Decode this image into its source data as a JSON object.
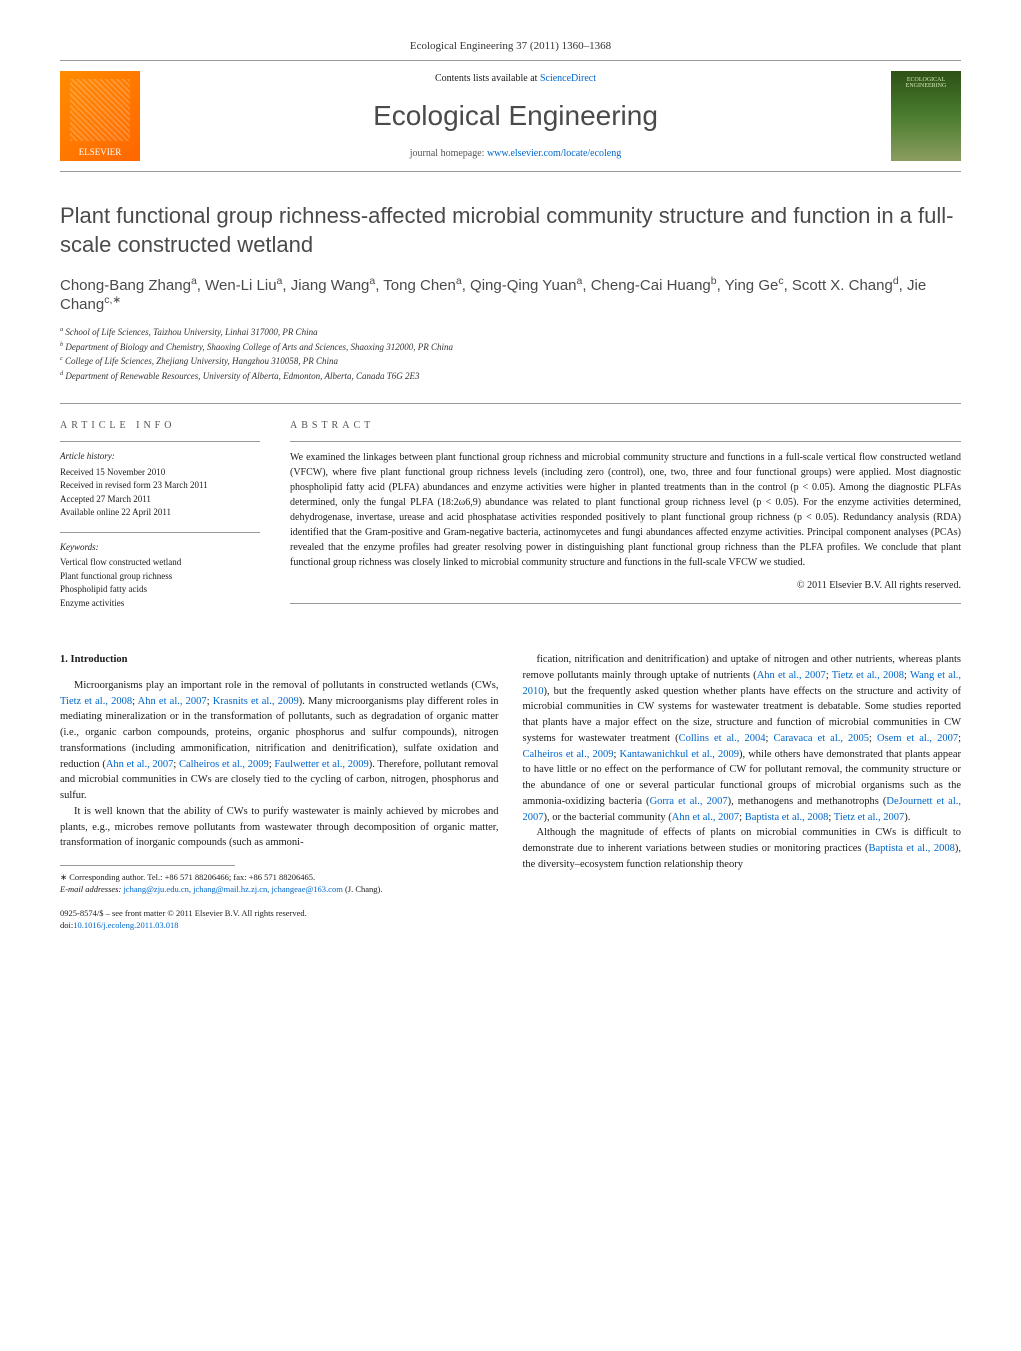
{
  "journal_ref": "Ecological Engineering 37 (2011) 1360–1368",
  "contents_text": "Contents lists available at ",
  "contents_link": "ScienceDirect",
  "journal_name": "Ecological Engineering",
  "homepage_text": "journal homepage: ",
  "homepage_link": "www.elsevier.com/locate/ecoleng",
  "elsevier_label": "ELSEVIER",
  "cover_label": "ECOLOGICAL ENGINEERING",
  "title": "Plant functional group richness-affected microbial community structure and function in a full-scale constructed wetland",
  "authors_html": "Chong-Bang Zhang<sup>a</sup>, Wen-Li Liu<sup>a</sup>, Jiang Wang<sup>a</sup>, Tong Chen<sup>a</sup>, Qing-Qing Yuan<sup>a</sup>, Cheng-Cai Huang<sup>b</sup>, Ying Ge<sup>c</sup>, Scott X. Chang<sup>d</sup>, Jie Chang<sup>c,∗</sup>",
  "affiliations": [
    "a School of Life Sciences, Taizhou University, Linhai 317000, PR China",
    "b Department of Biology and Chemistry, Shaoxing College of Arts and Sciences, Shaoxing 312000, PR China",
    "c College of Life Sciences, Zhejiang University, Hangzhou 310058, PR China",
    "d Department of Renewable Resources, University of Alberta, Edmonton, Alberta, Canada T6G 2E3"
  ],
  "info_label": "article info",
  "abstract_label": "abstract",
  "history": {
    "heading": "Article history:",
    "lines": [
      "Received 15 November 2010",
      "Received in revised form 23 March 2011",
      "Accepted 27 March 2011",
      "Available online 22 April 2011"
    ]
  },
  "keywords": {
    "heading": "Keywords:",
    "lines": [
      "Vertical flow constructed wetland",
      "Plant functional group richness",
      "Phospholipid fatty acids",
      "Enzyme activities"
    ]
  },
  "abstract": "We examined the linkages between plant functional group richness and microbial community structure and functions in a full-scale vertical flow constructed wetland (VFCW), where five plant functional group richness levels (including zero (control), one, two, three and four functional groups) were applied. Most diagnostic phospholipid fatty acid (PLFA) abundances and enzyme activities were higher in planted treatments than in the control (p < 0.05). Among the diagnostic PLFAs determined, only the fungal PLFA (18:2ω6,9) abundance was related to plant functional group richness level (p < 0.05). For the enzyme activities determined, dehydrogenase, invertase, urease and acid phosphatase activities responded positively to plant functional group richness (p < 0.05). Redundancy analysis (RDA) identified that the Gram-positive and Gram-negative bacteria, actinomycetes and fungi abundances affected enzyme activities. Principal component analyses (PCAs) revealed that the enzyme profiles had greater resolving power in distinguishing plant functional group richness than the PLFA profiles. We conclude that plant functional group richness was closely linked to microbial community structure and functions in the full-scale VFCW we studied.",
  "copyright": "© 2011 Elsevier B.V. All rights reserved.",
  "body": {
    "heading": "1. Introduction",
    "left_paras": [
      "Microorganisms play an important role in the removal of pollutants in constructed wetlands (CWs, Tietz et al., 2008; Ahn et al., 2007; Krasnits et al., 2009). Many microorganisms play different roles in mediating mineralization or in the transformation of pollutants, such as degradation of organic matter (i.e., organic carbon compounds, proteins, organic phosphorus and sulfur compounds), nitrogen transformations (including ammonification, nitrification and denitrification), sulfate oxidation and reduction (Ahn et al., 2007; Calheiros et al., 2009; Faulwetter et al., 2009). Therefore, pollutant removal and microbial communities in CWs are closely tied to the cycling of carbon, nitrogen, phosphorus and sulfur.",
      "It is well known that the ability of CWs to purify wastewater is mainly achieved by microbes and plants, e.g., microbes remove pollutants from wastewater through decomposition of organic matter, transformation of inorganic compounds (such as ammoni-"
    ],
    "right_paras": [
      "fication, nitrification and denitrification) and uptake of nitrogen and other nutrients, whereas plants remove pollutants mainly through uptake of nutrients (Ahn et al., 2007; Tietz et al., 2008; Wang et al., 2010), but the frequently asked question whether plants have effects on the structure and activity of microbial communities in CW systems for wastewater treatment is debatable. Some studies reported that plants have a major effect on the size, structure and function of microbial communities in CW systems for wastewater treatment (Collins et al., 2004; Caravaca et al., 2005; Osem et al., 2007; Calheiros et al., 2009; Kantawanichkul et al., 2009), while others have demonstrated that plants appear to have little or no effect on the performance of CW for pollutant removal, the community structure or the abundance of one or several particular functional groups of microbial organisms such as the ammonia-oxidizing bacteria (Gorra et al., 2007), methanogens and methanotrophs (DeJournett et al., 2007), or the bacterial community (Ahn et al., 2007; Baptista et al., 2008; Tietz et al., 2007).",
      "Although the magnitude of effects of plants on microbial communities in CWs is difficult to demonstrate due to inherent variations between studies or monitoring practices (Baptista et al., 2008), the diversity–ecosystem function relationship theory"
    ]
  },
  "corresponding": {
    "label": "∗ Corresponding author. Tel.: +86 571 88206466; fax: +86 571 88206465.",
    "email_label": "E-mail addresses:",
    "emails": "jchang@zju.edu.cn, jchang@mail.hz.zj.cn, jchangeae@163.com",
    "name": "(J. Chang)."
  },
  "doi": {
    "line1": "0925-8574/$ – see front matter © 2011 Elsevier B.V. All rights reserved.",
    "line2_label": "doi:",
    "line2_link": "10.1016/j.ecoleng.2011.03.018"
  },
  "colors": {
    "link": "#0066cc",
    "heading_gray": "#4a4a4a",
    "text": "#1a1a1a",
    "border": "#999999"
  }
}
